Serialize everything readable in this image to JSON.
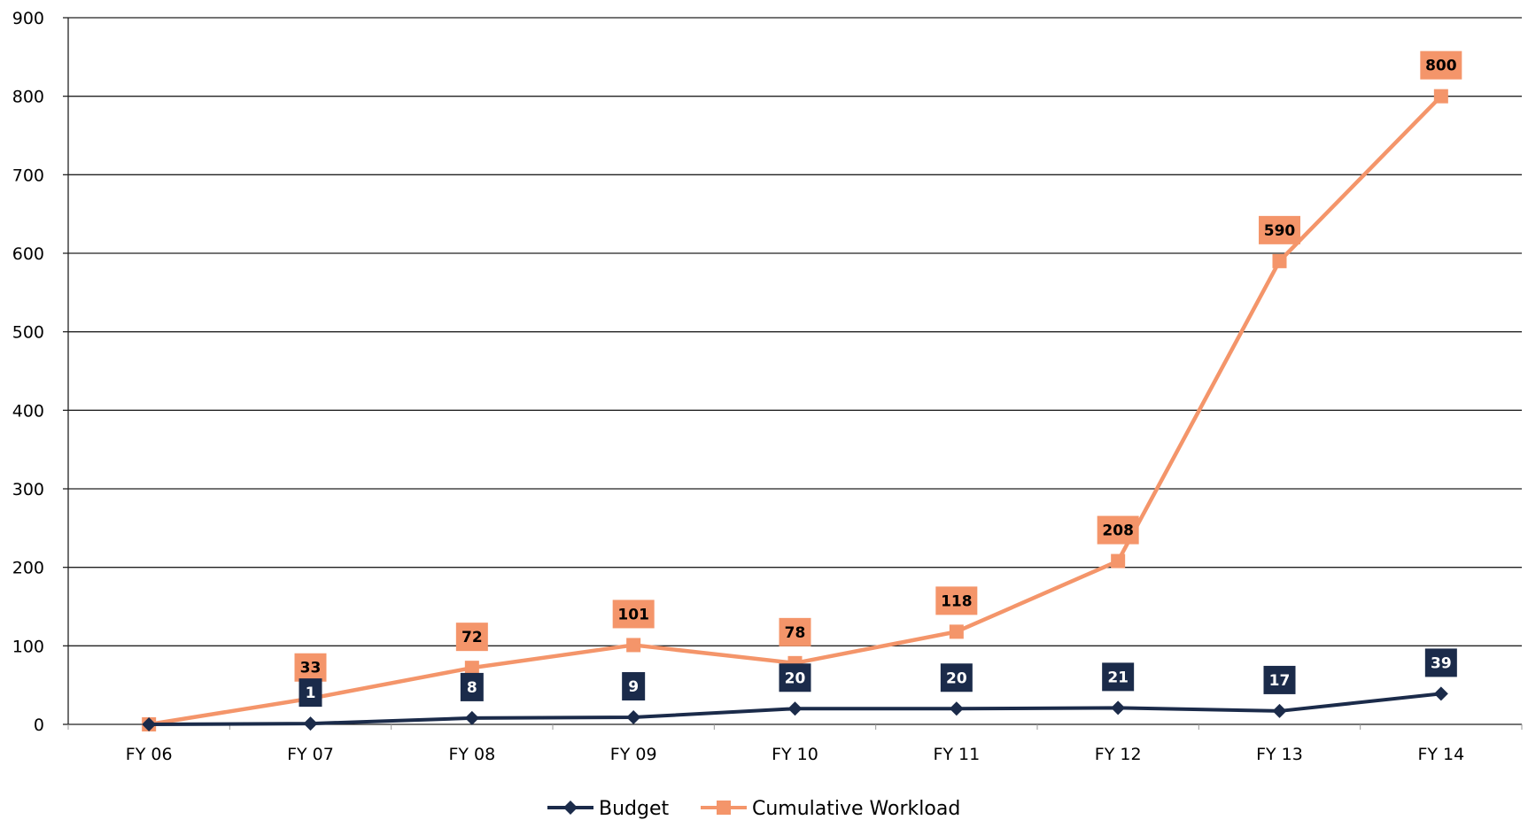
{
  "chart_data": {
    "type": "line",
    "title": "",
    "xlabel": "",
    "ylabel": "",
    "categories": [
      "FY 06",
      "FY 07",
      "FY 08",
      "FY 09",
      "FY 10",
      "FY 11",
      "FY 12",
      "FY 13",
      "FY 14"
    ],
    "ylim": [
      0,
      900
    ],
    "yticks": [
      0,
      100,
      200,
      300,
      400,
      500,
      600,
      700,
      800,
      900
    ],
    "grid": "horizontal",
    "legend": "bottom",
    "series": [
      {
        "name": "Budget",
        "values": [
          0,
          1,
          8,
          9,
          20,
          20,
          21,
          17,
          39
        ],
        "data_labels": [
          "",
          "1",
          "8",
          "9",
          "20",
          "20",
          "21",
          "17",
          "39"
        ],
        "color": "#1b2b4a",
        "marker": "diamond"
      },
      {
        "name": "Cumulative Workload",
        "values": [
          0,
          33,
          72,
          101,
          78,
          118,
          208,
          590,
          800
        ],
        "data_labels": [
          "",
          "33",
          "72",
          "101",
          "78",
          "118",
          "208",
          "590",
          "800"
        ],
        "color": "#f4956a",
        "marker": "square"
      }
    ]
  }
}
